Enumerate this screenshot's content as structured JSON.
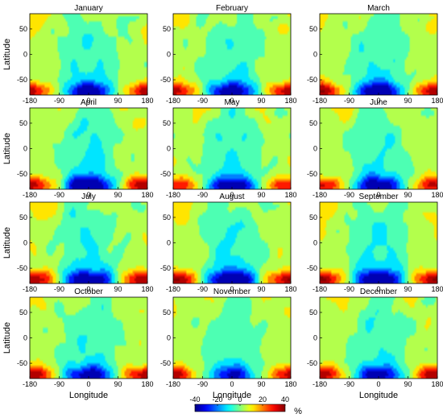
{
  "chart_data": {
    "type": "heatmap",
    "layout": "3 columns x 4 rows of filled contour maps",
    "panels": [
      {
        "title": "January",
        "anomaly": [
          -28,
          30
        ]
      },
      {
        "title": "February",
        "anomaly": [
          -27,
          32
        ]
      },
      {
        "title": "March",
        "anomaly": [
          -30,
          34
        ]
      },
      {
        "title": "April",
        "anomaly": [
          -33,
          33
        ]
      },
      {
        "title": "May",
        "anomaly": [
          -28,
          28
        ]
      },
      {
        "title": "June",
        "anomaly": [
          -28,
          30
        ]
      },
      {
        "title": "July",
        "anomaly": [
          -30,
          36
        ]
      },
      {
        "title": "August",
        "anomaly": [
          -34,
          36
        ]
      },
      {
        "title": "September",
        "anomaly": [
          -34,
          36
        ]
      },
      {
        "title": "October",
        "anomaly": [
          -26,
          34
        ]
      },
      {
        "title": "November",
        "anomaly": [
          -22,
          30
        ]
      },
      {
        "title": "December",
        "anomaly": [
          -25,
          34
        ]
      }
    ],
    "xlabel": "Longitude",
    "ylabel": "Latitude",
    "x_ticks": [
      "-180",
      "-90",
      "0",
      "90",
      "180"
    ],
    "y_ticks": [
      "50",
      "0",
      "-50"
    ],
    "xlim": [
      -180,
      180
    ],
    "ylim": [
      -80,
      80
    ],
    "colorbar": {
      "ticks": [
        "-40",
        "-20",
        "0",
        "20",
        "40"
      ],
      "unit": "%",
      "range": [
        -40,
        40
      ],
      "colormap": "jet"
    }
  }
}
